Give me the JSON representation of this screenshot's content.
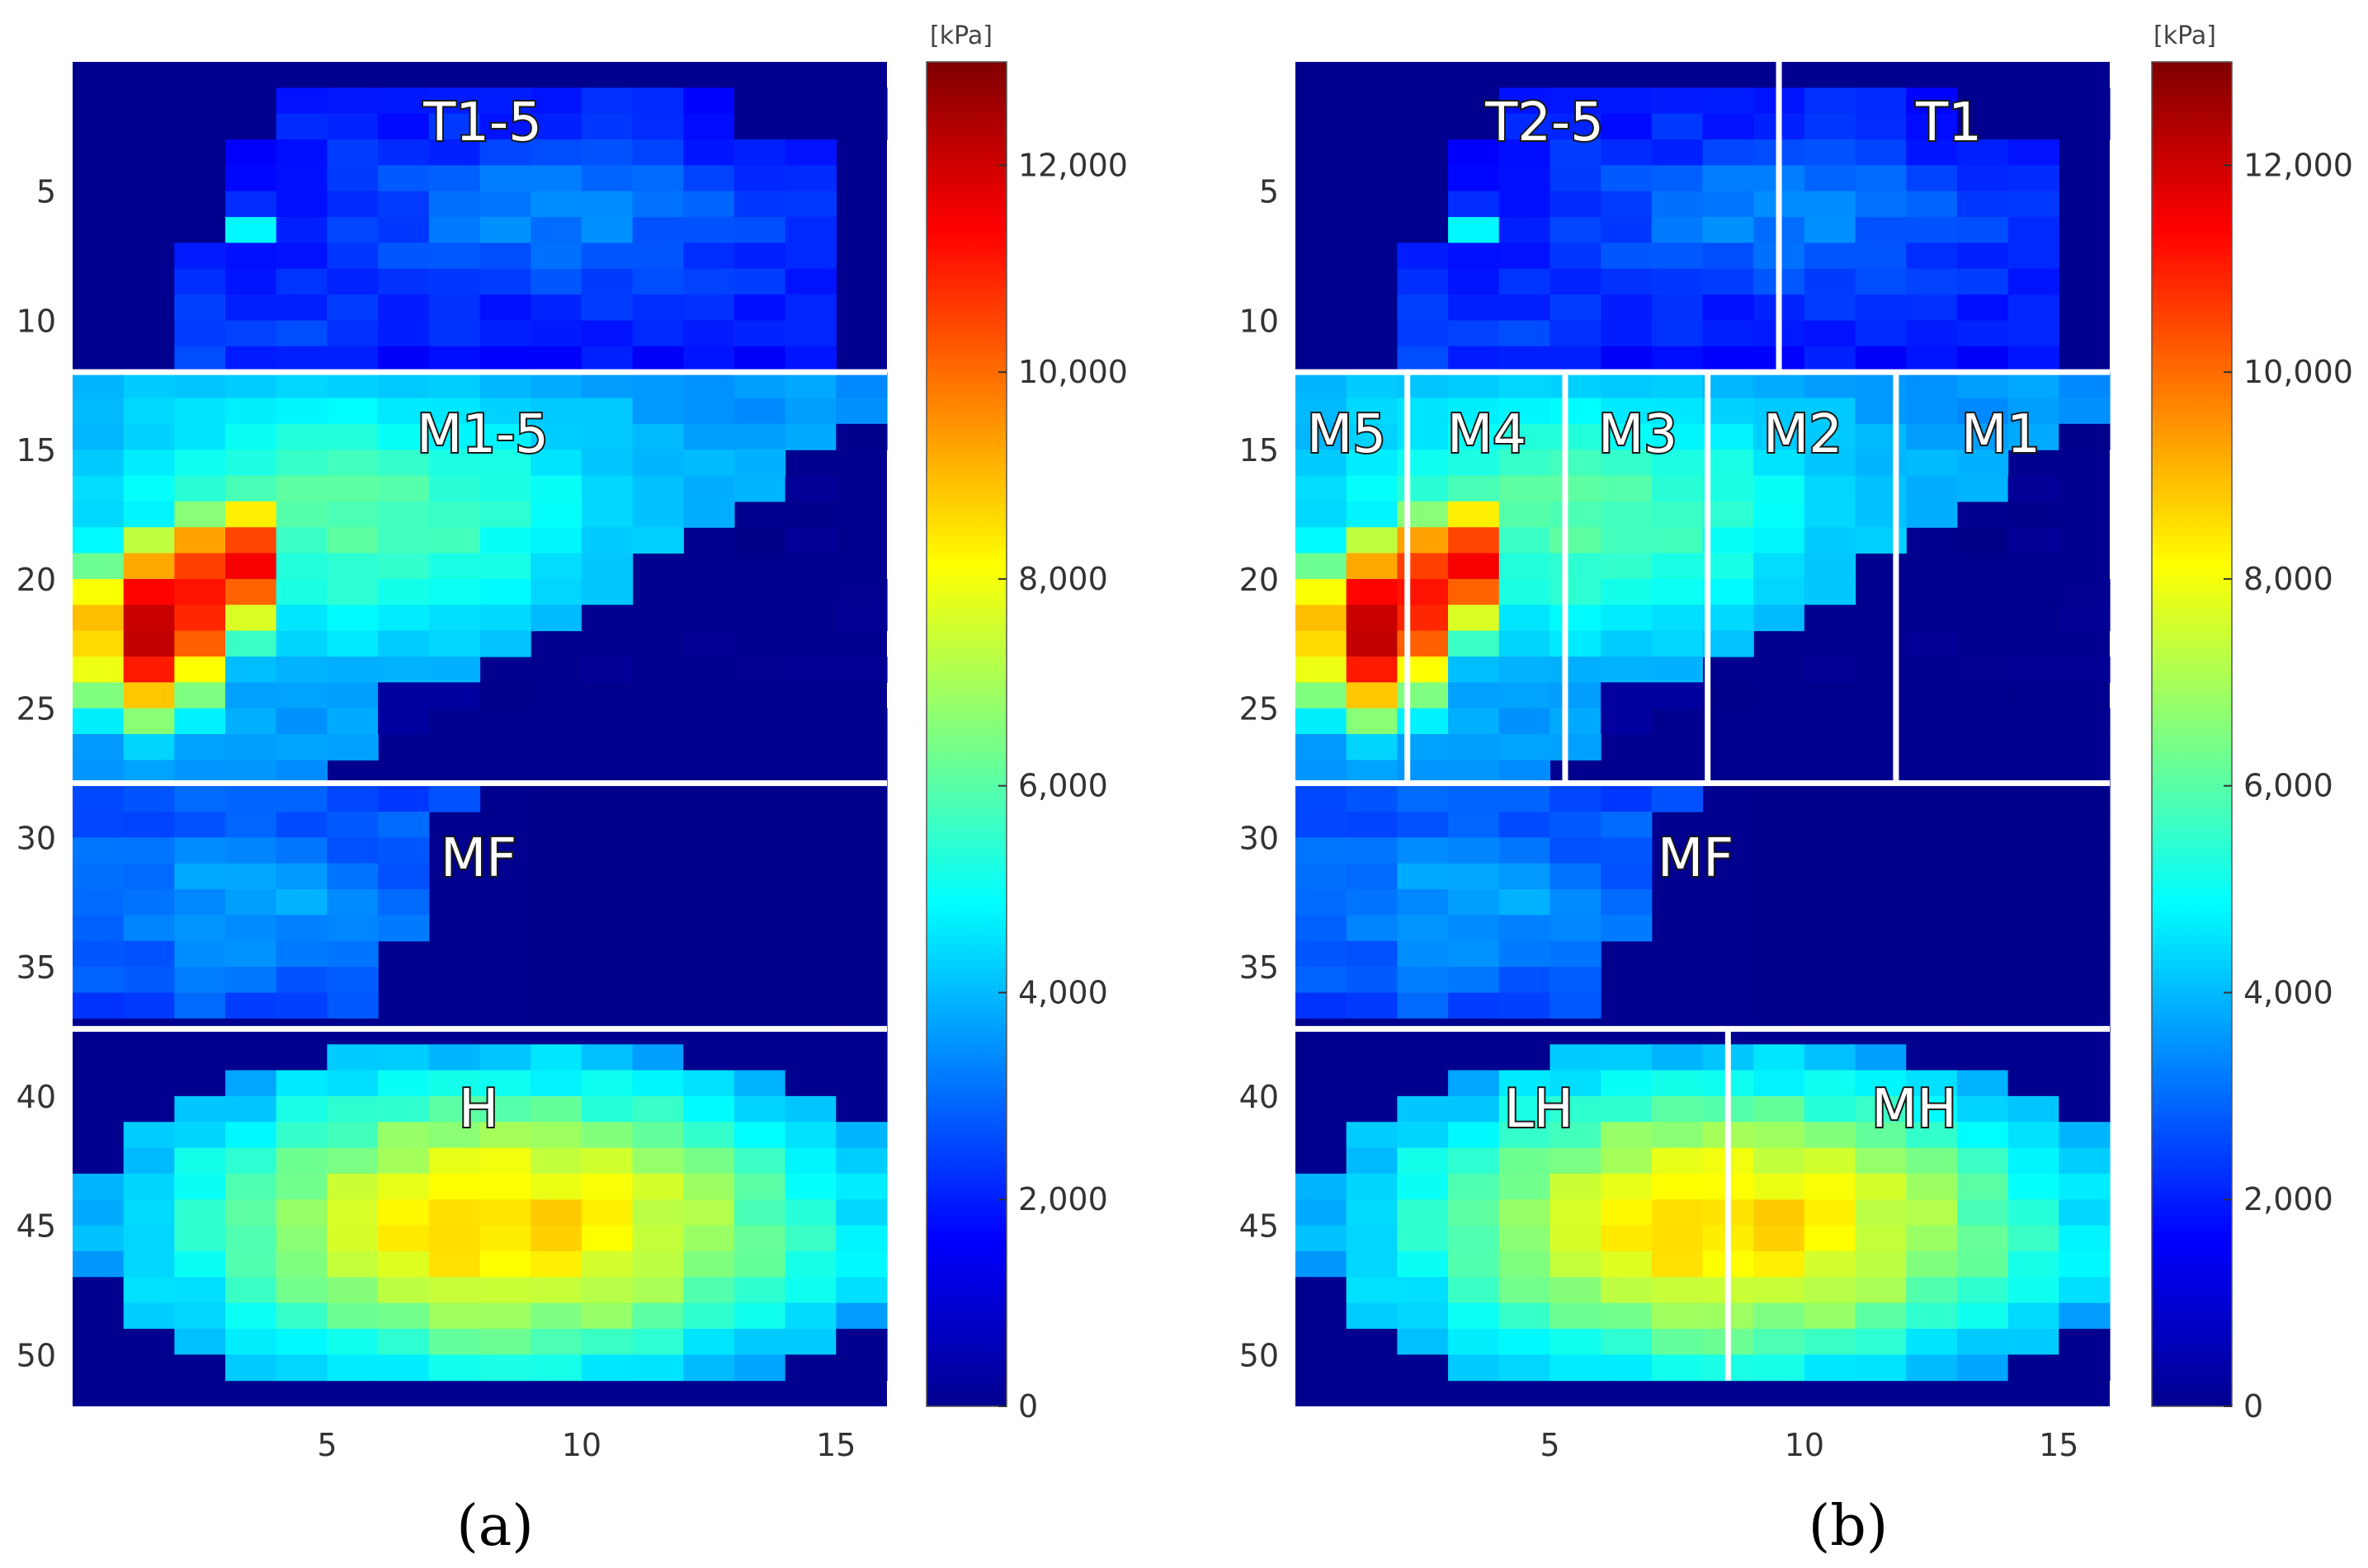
{
  "chart_data": [
    {
      "type": "heatmap",
      "panel_label": "(a)",
      "grid": {
        "columns": 16,
        "rows": 52
      },
      "x_ticks": [
        "5",
        "10",
        "15"
      ],
      "y_ticks": [
        "5",
        "10",
        "15",
        "20",
        "25",
        "30",
        "35",
        "40",
        "45",
        "50"
      ],
      "x_tick_values": [
        5,
        10,
        15
      ],
      "y_tick_values": [
        5,
        10,
        15,
        20,
        25,
        30,
        35,
        40,
        45,
        50
      ],
      "colorbar": {
        "unit": "[kPa]",
        "ticks": [
          "0",
          "2,000",
          "4,000",
          "6,000",
          "8,000",
          "10,000",
          "12,000"
        ],
        "tick_values": [
          0,
          2000,
          4000,
          6000,
          8000,
          10000,
          12000
        ],
        "range": [
          0,
          13000
        ]
      },
      "region_labels": [
        "T1-5",
        "M1-5",
        "MF",
        "H"
      ],
      "h_divider_rows": [
        12.5,
        28.4,
        37.9
      ],
      "v_dividers": []
    },
    {
      "type": "heatmap",
      "panel_label": "(b)",
      "grid": {
        "columns": 16,
        "rows": 52
      },
      "x_ticks": [
        "5",
        "10",
        "15"
      ],
      "y_ticks": [
        "5",
        "10",
        "15",
        "20",
        "25",
        "30",
        "35",
        "40",
        "45",
        "50"
      ],
      "x_tick_values": [
        5,
        10,
        15
      ],
      "y_tick_values": [
        5,
        10,
        15,
        20,
        25,
        30,
        35,
        40,
        45,
        50
      ],
      "colorbar": {
        "unit": "[kPa]",
        "ticks": [
          "0",
          "2,000",
          "4,000",
          "6,000",
          "8,000",
          "10,000",
          "12,000"
        ],
        "tick_values": [
          0,
          2000,
          4000,
          6000,
          8000,
          10000,
          12000
        ],
        "range": [
          0,
          13000
        ]
      },
      "region_labels": [
        "T2-5",
        "T1",
        "M5",
        "M4",
        "M3",
        "M2",
        "M1",
        "MF",
        "LH",
        "MH"
      ],
      "h_divider_rows": [
        12.5,
        28.4,
        37.9
      ],
      "v_dividers": [
        {
          "x": 10.0,
          "from": 0.5,
          "to": 12.5
        },
        {
          "x": 2.7,
          "from": 12.5,
          "to": 28.4
        },
        {
          "x": 5.8,
          "from": 12.5,
          "to": 28.4
        },
        {
          "x": 8.6,
          "from": 12.5,
          "to": 28.4
        },
        {
          "x": 12.3,
          "from": 12.5,
          "to": 28.4
        },
        {
          "x": 9.0,
          "from": 37.9,
          "to": 51.5
        }
      ]
    }
  ]
}
